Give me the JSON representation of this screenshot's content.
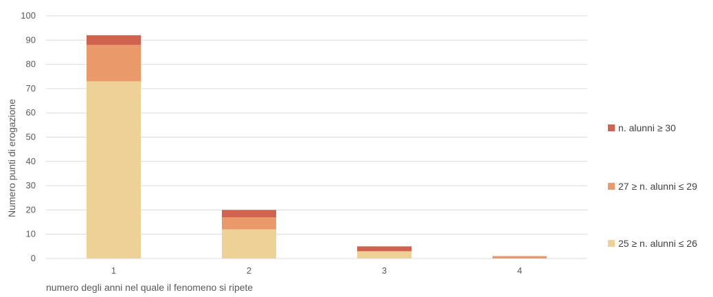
{
  "chart_data": {
    "type": "bar",
    "stacked": true,
    "categories": [
      "1",
      "2",
      "3",
      "4"
    ],
    "series": [
      {
        "name": "25 ≥ n. alunni ≤ 26",
        "values": [
          73,
          12,
          3,
          0
        ],
        "color": "#EDD196"
      },
      {
        "name": "27 ≥ n. alunni ≤ 29",
        "values": [
          15,
          5,
          0,
          1
        ],
        "color": "#E9996A"
      },
      {
        "name": "n. alunni ≥ 30",
        "values": [
          4,
          3,
          2,
          0
        ],
        "color": "#CF6350"
      }
    ],
    "xlabel": "numero degli anni nel quale il fenomeno si ripete",
    "ylabel": "Numero punti di erogazione",
    "ylim": [
      0,
      100
    ],
    "yticks": [
      "0",
      "10",
      "20",
      "30",
      "40",
      "50",
      "60",
      "70",
      "80",
      "90",
      "100"
    ],
    "grid": true,
    "gridColor": "#D9D9D9",
    "legend_position": "right",
    "legend_order": [
      "n. alunni ≥ 30",
      "27 ≥ n. alunni ≤ 29",
      "25 ≥ n. alunni ≤ 26"
    ]
  }
}
